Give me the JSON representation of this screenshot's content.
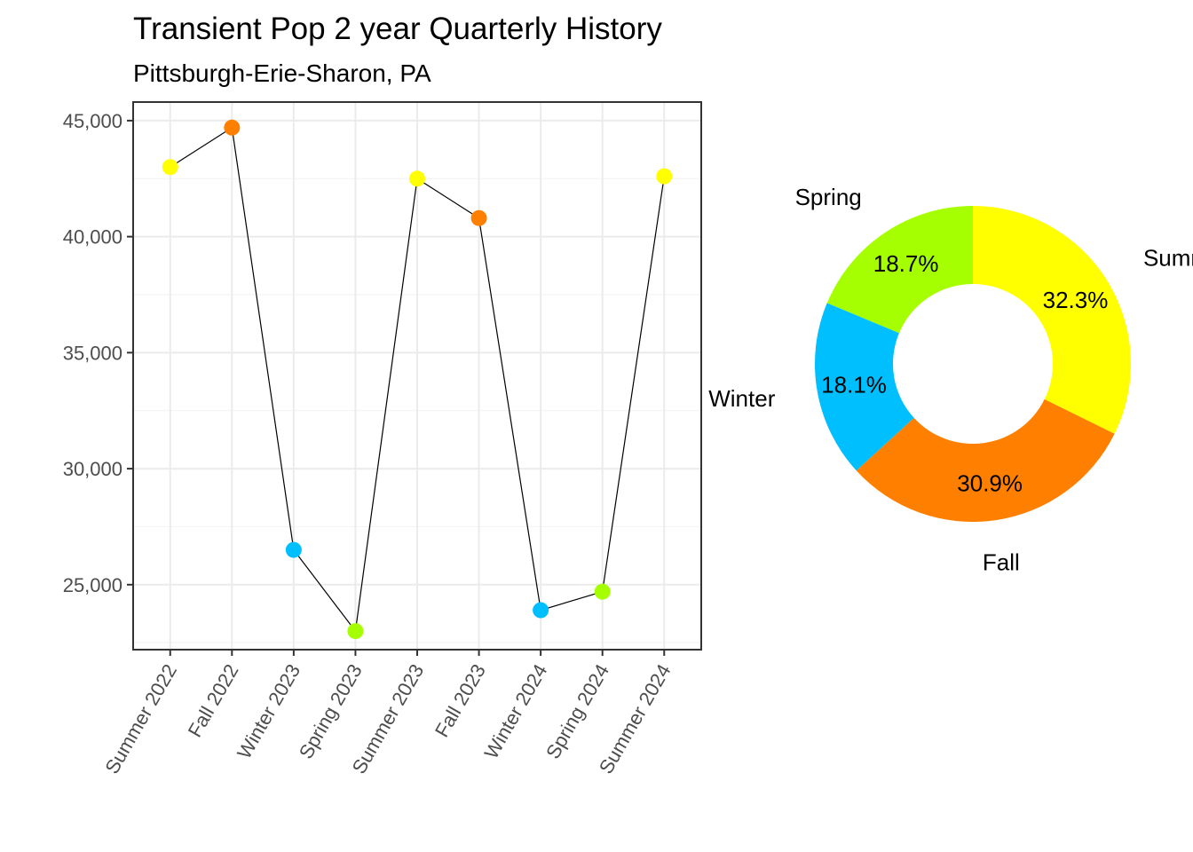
{
  "title": "Transient Pop 2 year Quarterly History",
  "subtitle": "Pittsburgh-Erie-Sharon, PA",
  "chart_data": [
    {
      "type": "line",
      "categories": [
        "Summer 2022",
        "Fall 2022",
        "Winter 2023",
        "Spring 2023",
        "Summer 2023",
        "Fall 2023",
        "Winter 2024",
        "Spring 2024",
        "Summer 2024"
      ],
      "values": [
        43000,
        44700,
        26500,
        23000,
        42500,
        40800,
        23900,
        24700,
        42600
      ],
      "seasons": [
        "Summer",
        "Fall",
        "Winter",
        "Spring",
        "Summer",
        "Fall",
        "Winter",
        "Spring",
        "Summer"
      ],
      "ylim": [
        22200,
        45800
      ],
      "yticks": [
        25000,
        30000,
        35000,
        40000,
        45000
      ],
      "ytick_labels": [
        "25,000",
        "30,000",
        "35,000",
        "40,000",
        "45,000"
      ],
      "grid": true
    },
    {
      "type": "pie",
      "donut": true,
      "slices": [
        {
          "label": "Summer",
          "value": 32.3,
          "pct_label": "32.3%"
        },
        {
          "label": "Fall",
          "value": 30.9,
          "pct_label": "30.9%"
        },
        {
          "label": "Winter",
          "value": 18.1,
          "pct_label": "18.1%"
        },
        {
          "label": "Spring",
          "value": 18.7,
          "pct_label": "18.7%"
        }
      ]
    }
  ],
  "colors": {
    "Summer": "#ffff00",
    "Fall": "#ff8000",
    "Winter": "#00bfff",
    "Spring": "#a6ff00"
  }
}
